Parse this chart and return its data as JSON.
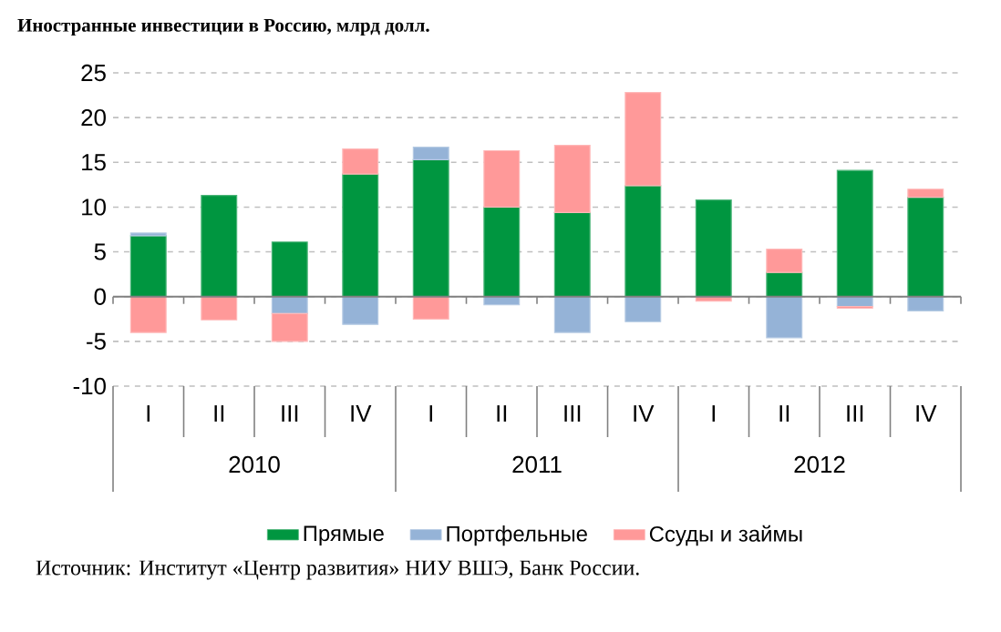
{
  "chart_data": {
    "type": "bar",
    "stacked": true,
    "title": "Иностранные инвестиции в Россию, млрд долл.",
    "categories": [
      "I",
      "II",
      "III",
      "IV",
      "I",
      "II",
      "III",
      "IV",
      "I",
      "II",
      "III",
      "IV"
    ],
    "series": [
      {
        "name": "Прямые",
        "color": "#009640",
        "values": [
          6.8,
          11.3,
          6.1,
          13.7,
          15.3,
          10.0,
          9.4,
          12.4,
          10.8,
          2.7,
          14.1,
          11.1
        ]
      },
      {
        "name": "Портфельные",
        "color": "#95b3d7",
        "values": [
          0.3,
          null,
          -1.9,
          -3.1,
          1.4,
          -0.9,
          -4.0,
          -2.8,
          null,
          -4.6,
          -1.1,
          -1.6
        ]
      },
      {
        "name": "Ссуды и займы",
        "color": "#ff9999",
        "values": [
          -4.0,
          -2.6,
          -3.1,
          2.8,
          -2.5,
          6.3,
          7.5,
          10.4,
          -0.5,
          2.6,
          -0.2,
          0.9
        ]
      }
    ],
    "ylim": [
      -10,
      25
    ],
    "yticks": [
      -10,
      -5,
      0,
      5,
      10,
      15,
      20,
      25
    ],
    "grid": "y",
    "legend": "bottom",
    "annotations": [
      "2010",
      "2011",
      "2012",
      "Источник: Институт «Центр развития» НИУ ВШЭ, Банк России."
    ]
  }
}
